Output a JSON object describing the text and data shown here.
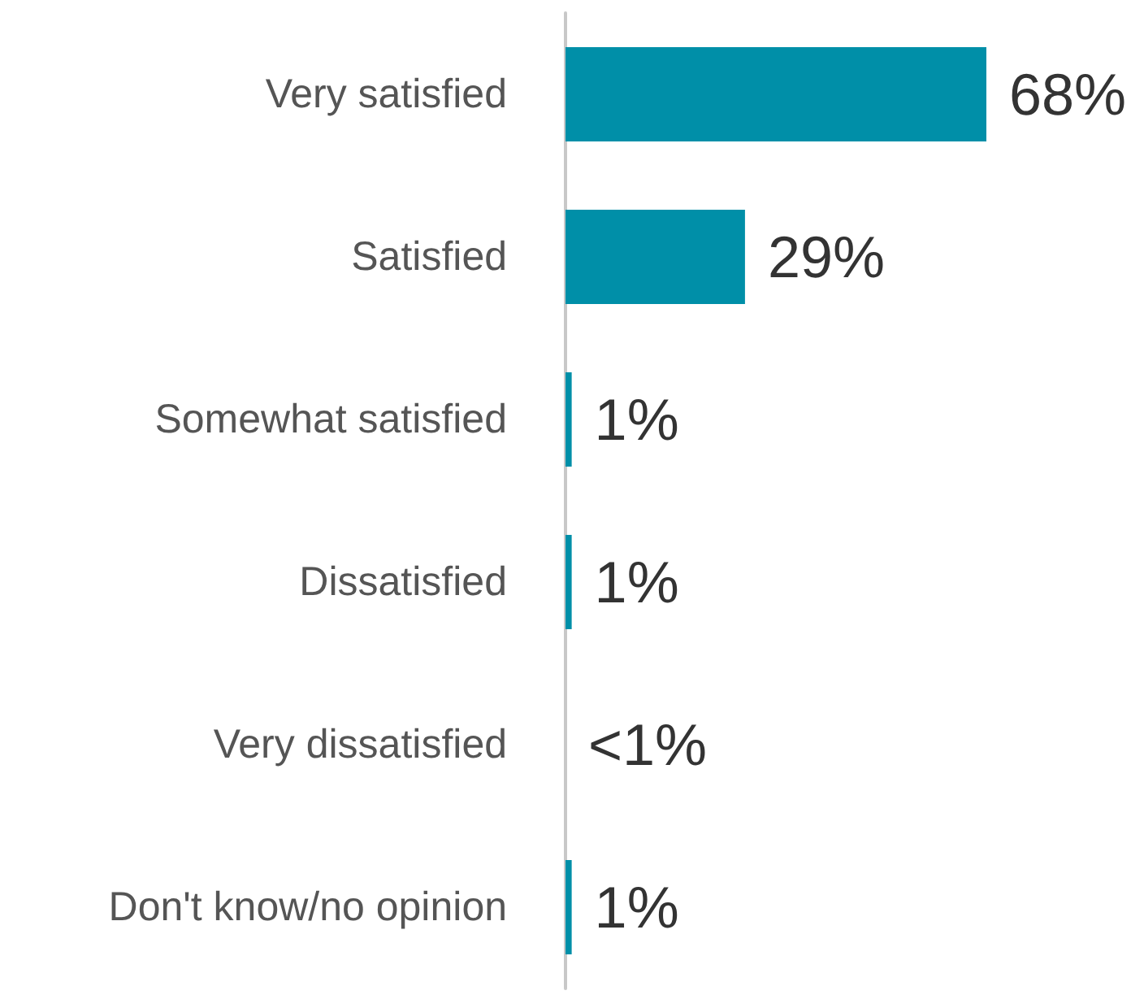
{
  "chart_data": {
    "type": "bar",
    "orientation": "horizontal",
    "categories": [
      "Very satisfied",
      "Satisfied",
      "Somewhat satisfied",
      "Dissatisfied",
      "Very dissatisfied",
      "Don't know/no opinion"
    ],
    "values": [
      68,
      29,
      1,
      1,
      0,
      1
    ],
    "value_labels": [
      "68%",
      "29%",
      "1%",
      "1%",
      "<1%",
      "1%"
    ],
    "color": "#008fa8"
  }
}
